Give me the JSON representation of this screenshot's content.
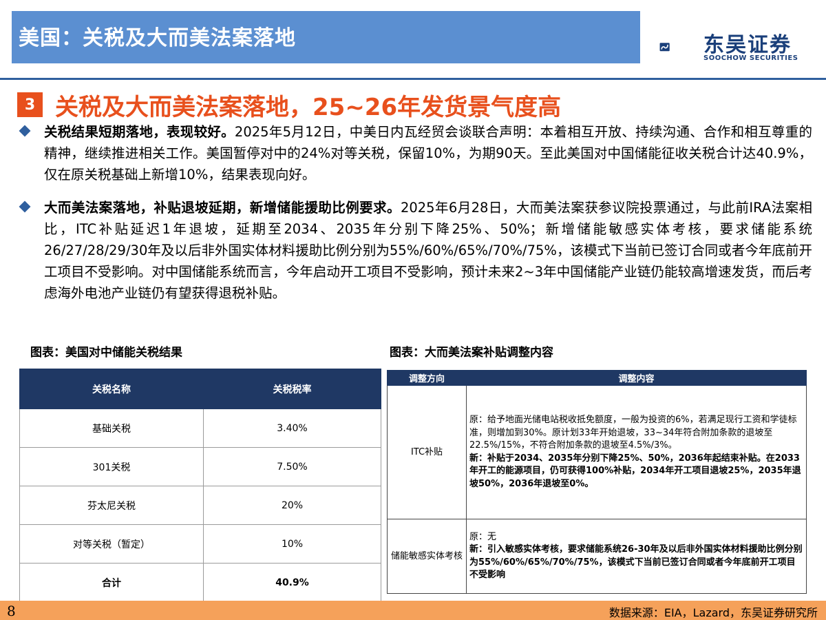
{
  "header": {
    "title": "美国：关税及大而美法案落地",
    "logo_cn": "东吴证券",
    "logo_en": "SOOCHOW SECURITIES",
    "brand_color": "#5b8fd1",
    "logo_color": "#1a3f7a"
  },
  "section": {
    "number": "3",
    "title": "关税及大而美法案落地，25~26年发货景气度高",
    "accent_color": "#e8501d"
  },
  "bullets": [
    {
      "lead": "关税结果短期落地，表现较好。",
      "body": "2025年5月12日，中美日内瓦经贸会谈联合声明：本着相互开放、持续沟通、合作和相互尊重的精神，继续推进相关工作。美国暂停对中的24%对等关税，保留10%，为期90天。至此美国对中国储能征收关税合计达40.9%，仅在原关税基础上新增10%，结果表现向好。"
    },
    {
      "lead": "大而美法案落地，补贴退坡延期，新增储能援助比例要求。",
      "body": "2025年6月28日，大而美法案获参议院投票通过，与此前IRA法案相比，ITC补贴延迟1年退坡，延期至2034、2035年分别下降25%、50%；新增储能敏感实体考核，要求储能系统26/27/28/29/30年及以后非外国实体材料援助比例分别为55%/60%/65%/70%/75%，该模式下当前已签订合同或者今年底前开工项目不受影响。对中国储能系统而言，今年启动开工项目不受影响，预计未来2~3年中国储能产业链仍能较高增速发货，而后考虑海外电池产业链仍有望获得退税补贴。"
    }
  ],
  "left_table": {
    "caption": "图表：美国对中储能关税结果",
    "headers": [
      "关税名称",
      "关税税率"
    ],
    "rows": [
      [
        "基础关税",
        "3.40%"
      ],
      [
        "301关税",
        "7.50%"
      ],
      [
        "芬太尼关税",
        "20%"
      ],
      [
        "对等关税（暂定）",
        "10%"
      ],
      [
        "合计",
        "40.9%"
      ]
    ],
    "header_color": "#1f3864"
  },
  "right_table": {
    "caption": "图表：大而美法案补贴调整内容",
    "headers": [
      "调整方向",
      "调整内容"
    ],
    "rows": [
      {
        "direction": "ITC补贴",
        "original": "原：给予地面光储电站税收抵免额度，一般为投资的6%，若满足现行工资和学徒标准，则增加到30%。原计划33年开始退坡，33~34年符合附加条款的退坡至22.5%/15%，不符合附加条款的退坡至4.5%/3%。",
        "new": "新：补贴于2034、2035年分别下降25%、50%，2036年起结束补贴。在2033年开工的能源项目，仍可获得100%补贴，2034年开工项目退坡25%，2035年退坡50%，2036年退坡至0%。"
      },
      {
        "direction": "储能敏感实体考核",
        "original": "原：无",
        "new": "新：引入敏感实体考核，要求储能系统26-30年及以后非外国实体材料援助比例分别为55%/60%/65%/70%/75%，该模式下当前已签订合同或者今年底前开工项目不受影响"
      }
    ]
  },
  "footer": {
    "page_number": "8",
    "source": "数据来源：EIA，Lazard，东吴证券研究所",
    "band_color": "#f5a15a"
  }
}
